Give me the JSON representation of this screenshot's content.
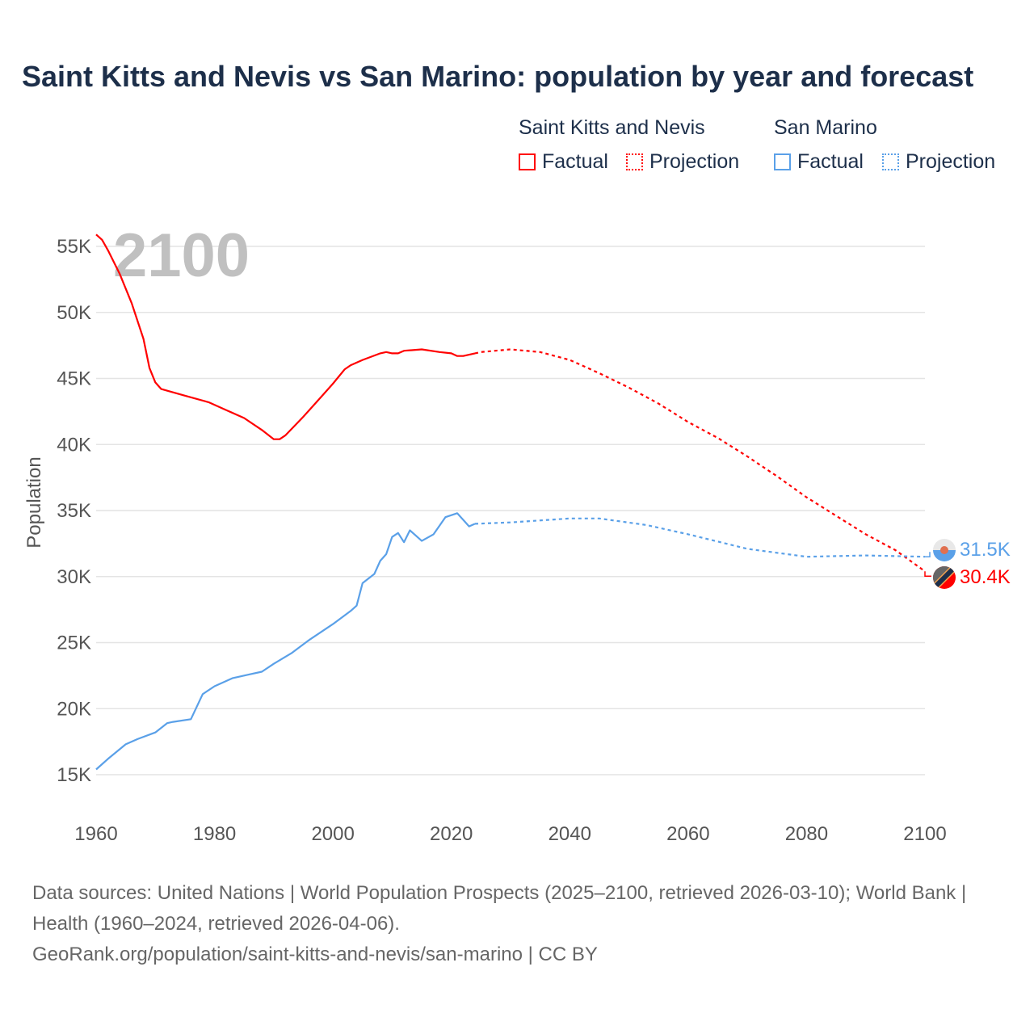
{
  "title": "Saint Kitts and Nevis vs San Marino: population by year and forecast",
  "legend": {
    "groups": [
      {
        "name": "Saint Kitts and Nevis",
        "color": "#ff0000",
        "factual": "Factual",
        "projection": "Projection"
      },
      {
        "name": "San Marino",
        "color": "#5aa0e8",
        "factual": "Factual",
        "projection": "Projection"
      }
    ]
  },
  "year_watermark": "2100",
  "end_labels": {
    "skn": "30.4K",
    "smr": "31.5K"
  },
  "footer": {
    "sources": "Data sources: United Nations | World Population Prospects (2025–2100, retrieved 2026-03-10); World Bank | Health (1960–2024, retrieved 2026-04-06).",
    "link": "GeoRank.org/population/saint-kitts-and-nevis/san-marino | CC BY"
  },
  "chart_data": {
    "type": "line",
    "title": "Saint Kitts and Nevis vs San Marino: population by year and forecast",
    "xlabel": "",
    "ylabel": "Population",
    "xlim": [
      1960,
      2100
    ],
    "ylim": [
      15000,
      55000
    ],
    "x_ticks": [
      "1960",
      "1980",
      "2000",
      "2020",
      "2040",
      "2060",
      "2080",
      "2100"
    ],
    "y_ticks": [
      "15K",
      "20K",
      "25K",
      "30K",
      "35K",
      "40K",
      "45K",
      "50K",
      "55K"
    ],
    "grid": true,
    "legend_position": "top-right",
    "series": [
      {
        "name": "Saint Kitts and Nevis Factual",
        "color": "#ff0000",
        "dash": false,
        "points": [
          [
            1960,
            55900
          ],
          [
            1961,
            55500
          ],
          [
            1962,
            54700
          ],
          [
            1964,
            52900
          ],
          [
            1966,
            50700
          ],
          [
            1968,
            48000
          ],
          [
            1969,
            45800
          ],
          [
            1970,
            44700
          ],
          [
            1971,
            44200
          ],
          [
            1975,
            43700
          ],
          [
            1979,
            43200
          ],
          [
            1982,
            42600
          ],
          [
            1985,
            42000
          ],
          [
            1988,
            41100
          ],
          [
            1990,
            40400
          ],
          [
            1991,
            40400
          ],
          [
            1992,
            40700
          ],
          [
            1995,
            42100
          ],
          [
            1998,
            43600
          ],
          [
            2000,
            44600
          ],
          [
            2002,
            45700
          ],
          [
            2003,
            46000
          ],
          [
            2005,
            46400
          ],
          [
            2008,
            46900
          ],
          [
            2009,
            47000
          ],
          [
            2010,
            46900
          ],
          [
            2011,
            46900
          ],
          [
            2012,
            47100
          ],
          [
            2015,
            47200
          ],
          [
            2018,
            47000
          ],
          [
            2020,
            46900
          ],
          [
            2021,
            46700
          ],
          [
            2022,
            46700
          ],
          [
            2024,
            46900
          ]
        ]
      },
      {
        "name": "Saint Kitts and Nevis Projection",
        "color": "#ff0000",
        "dash": true,
        "points": [
          [
            2024,
            46900
          ],
          [
            2025,
            47000
          ],
          [
            2030,
            47200
          ],
          [
            2035,
            47000
          ],
          [
            2040,
            46400
          ],
          [
            2045,
            45400
          ],
          [
            2050,
            44300
          ],
          [
            2055,
            43100
          ],
          [
            2060,
            41700
          ],
          [
            2065,
            40500
          ],
          [
            2070,
            39100
          ],
          [
            2075,
            37600
          ],
          [
            2080,
            36000
          ],
          [
            2085,
            34600
          ],
          [
            2090,
            33200
          ],
          [
            2095,
            32000
          ],
          [
            2100,
            30400
          ]
        ]
      },
      {
        "name": "San Marino Factual",
        "color": "#5aa0e8",
        "dash": false,
        "points": [
          [
            1960,
            15400
          ],
          [
            1962,
            16200
          ],
          [
            1965,
            17300
          ],
          [
            1967,
            17700
          ],
          [
            1970,
            18200
          ],
          [
            1972,
            18900
          ],
          [
            1973,
            19000
          ],
          [
            1976,
            19200
          ],
          [
            1978,
            21100
          ],
          [
            1980,
            21700
          ],
          [
            1983,
            22300
          ],
          [
            1986,
            22600
          ],
          [
            1988,
            22800
          ],
          [
            1990,
            23400
          ],
          [
            1993,
            24200
          ],
          [
            1996,
            25200
          ],
          [
            2000,
            26400
          ],
          [
            2003,
            27400
          ],
          [
            2004,
            27800
          ],
          [
            2005,
            29500
          ],
          [
            2007,
            30200
          ],
          [
            2008,
            31200
          ],
          [
            2009,
            31700
          ],
          [
            2010,
            33000
          ],
          [
            2011,
            33300
          ],
          [
            2012,
            32600
          ],
          [
            2013,
            33500
          ],
          [
            2015,
            32700
          ],
          [
            2017,
            33200
          ],
          [
            2019,
            34500
          ],
          [
            2021,
            34800
          ],
          [
            2023,
            33800
          ],
          [
            2024,
            34000
          ]
        ]
      },
      {
        "name": "San Marino Projection",
        "color": "#5aa0e8",
        "dash": true,
        "points": [
          [
            2024,
            34000
          ],
          [
            2030,
            34100
          ],
          [
            2040,
            34400
          ],
          [
            2045,
            34400
          ],
          [
            2053,
            33900
          ],
          [
            2060,
            33200
          ],
          [
            2070,
            32100
          ],
          [
            2080,
            31500
          ],
          [
            2090,
            31600
          ],
          [
            2100,
            31500
          ]
        ]
      }
    ]
  }
}
